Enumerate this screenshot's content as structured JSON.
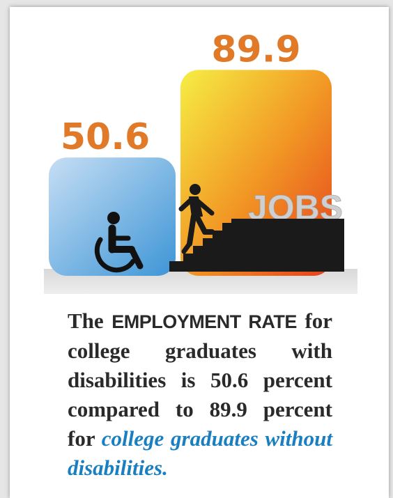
{
  "chart_data": {
    "type": "bar",
    "categories": [
      "with disabilities",
      "without disabilities"
    ],
    "values": [
      50.6,
      89.9
    ],
    "value_labels": [
      "50.6",
      "89.9"
    ],
    "colors": {
      "bar1_top": "#b9d6f1",
      "bar1_bottom": "#3d97d8",
      "bar2_top": "#f5e83e",
      "bar2_bottom": "#e8471e",
      "value_text": "#e07a28"
    }
  },
  "graphic": {
    "jobs_label": "JOBS",
    "icons": [
      "wheelchair-icon",
      "stair-climber-icon",
      "stairs-icon"
    ]
  },
  "description": {
    "part1": "The",
    "emphasis": "EMPLOYMENT RATE",
    "part2": "for college graduates with disabilities is 50.6 percent compared to 89.9 percent for",
    "highlight": "college graduates without disabilities."
  }
}
